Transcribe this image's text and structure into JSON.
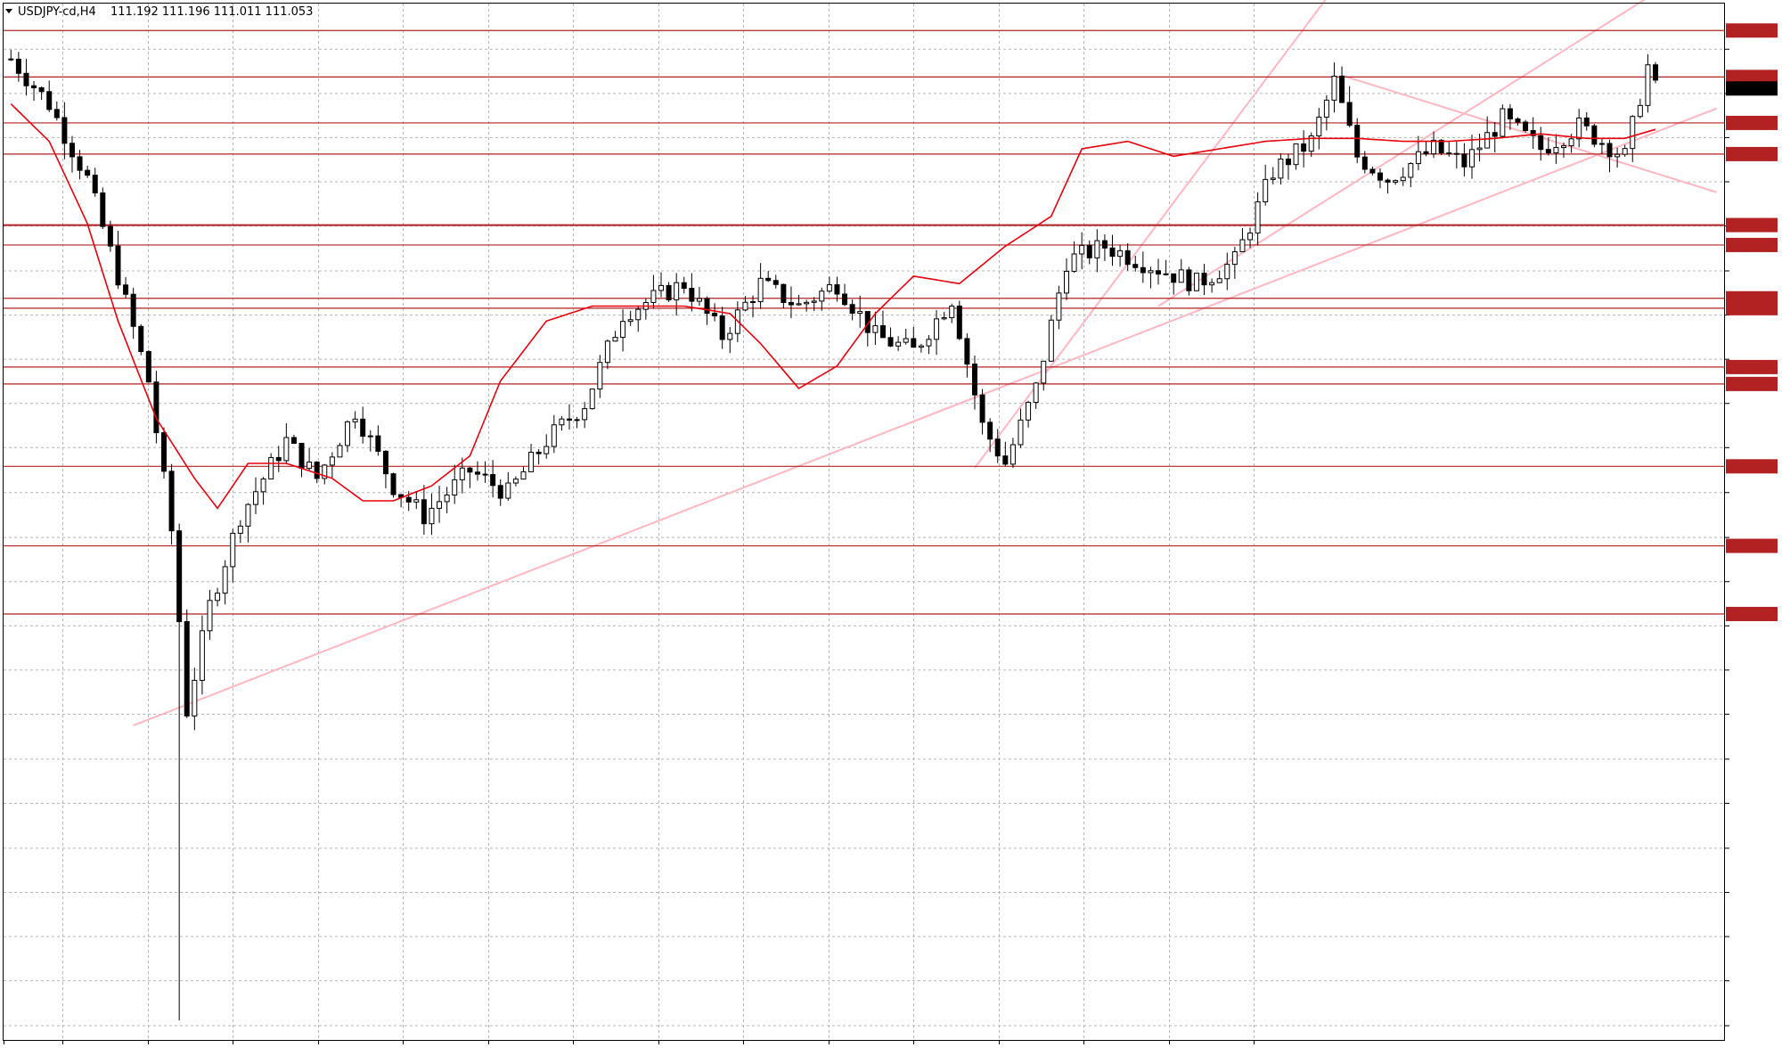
{
  "header": {
    "symbol": "USDJPY-cd,H4",
    "ohlc": "111.192 111.196 111.011 111.053"
  },
  "colors": {
    "background": "#ffffff",
    "grid": "#b4b4b4",
    "candle": "#000000",
    "bull_body": "#ffffff",
    "bear_body": "#000000",
    "ma": "#e8000b",
    "level_line": "#b22222",
    "level_label_bg": "#b22222",
    "trendline": "#ffb6c1"
  },
  "chart_data": {
    "type": "candlestick",
    "title": "",
    "xlabel": "",
    "ylabel": "",
    "ylim": [
      104.7,
      111.62
    ],
    "grid": true,
    "y_ticks": [
      "111.315",
      "111.020",
      "110.725",
      "110.430",
      "110.135",
      "109.835",
      "109.540",
      "109.245",
      "108.950",
      "108.655",
      "108.355",
      "108.055",
      "107.760",
      "107.465",
      "107.170",
      "106.875",
      "106.575",
      "106.280",
      "105.980",
      "105.685",
      "105.390",
      "105.095",
      "104.795"
    ],
    "x_ticks": [
      "27 Dec 2018",
      "2 Jan 00:00",
      "4 Jan 16:00",
      "9 Jan 08:00",
      "14 Jan 00:00",
      "16 Jan 16:00",
      "21 Jan 08:00",
      "24 Jan 00:00",
      "28 Jan 16:00",
      "31 Jan 08:00",
      "5 Feb 00:00",
      "7 Feb 16:00",
      "12 Feb 08:00",
      "15 Feb 00:00",
      "19 Feb 16:00",
      "22 Feb 08:00"
    ],
    "current_price": "111.053",
    "levels": [
      "111.440",
      "111.130",
      "110.823",
      "110.615",
      "110.141",
      "110.008",
      "109.652",
      "109.586",
      "109.193",
      "109.080",
      "108.530",
      "107.999",
      "107.544"
    ],
    "price_path": [
      [
        0,
        111.25
      ],
      [
        5,
        110.95
      ],
      [
        10,
        110.45
      ],
      [
        14,
        109.8
      ],
      [
        18,
        109.1
      ],
      [
        21,
        108.1
      ],
      [
        23,
        106.9
      ],
      [
        26,
        107.6
      ],
      [
        30,
        108.2
      ],
      [
        36,
        108.7
      ],
      [
        40,
        108.45
      ],
      [
        45,
        108.9
      ],
      [
        50,
        108.4
      ],
      [
        54,
        108.2
      ],
      [
        60,
        108.5
      ],
      [
        65,
        108.35
      ],
      [
        70,
        108.7
      ],
      [
        75,
        108.95
      ],
      [
        80,
        109.55
      ],
      [
        88,
        109.75
      ],
      [
        93,
        109.4
      ],
      [
        98,
        109.75
      ],
      [
        103,
        109.6
      ],
      [
        108,
        109.75
      ],
      [
        113,
        109.4
      ],
      [
        118,
        109.3
      ],
      [
        123,
        109.65
      ],
      [
        127,
        108.8
      ],
      [
        130,
        108.55
      ],
      [
        134,
        109.05
      ],
      [
        138,
        109.9
      ],
      [
        143,
        110.0
      ],
      [
        150,
        109.85
      ],
      [
        155,
        109.75
      ],
      [
        160,
        109.9
      ],
      [
        165,
        110.5
      ],
      [
        170,
        110.7
      ],
      [
        173,
        111.1
      ],
      [
        176,
        110.6
      ],
      [
        180,
        110.45
      ],
      [
        186,
        110.65
      ],
      [
        190,
        110.55
      ],
      [
        195,
        110.85
      ],
      [
        200,
        110.65
      ],
      [
        205,
        110.8
      ],
      [
        211,
        110.6
      ],
      [
        214,
        111.2
      ],
      [
        215,
        111.05
      ]
    ],
    "ma_path": [
      [
        0,
        110.95
      ],
      [
        5,
        110.7
      ],
      [
        10,
        110.15
      ],
      [
        14,
        109.5
      ],
      [
        19,
        108.85
      ],
      [
        24,
        108.45
      ],
      [
        27,
        108.25
      ],
      [
        31,
        108.55
      ],
      [
        36,
        108.55
      ],
      [
        42,
        108.45
      ],
      [
        46,
        108.3
      ],
      [
        50,
        108.3
      ],
      [
        55,
        108.4
      ],
      [
        60,
        108.6
      ],
      [
        64,
        109.1
      ],
      [
        70,
        109.5
      ],
      [
        76,
        109.6
      ],
      [
        82,
        109.6
      ],
      [
        88,
        109.6
      ],
      [
        94,
        109.55
      ],
      [
        98,
        109.35
      ],
      [
        103,
        109.05
      ],
      [
        108,
        109.2
      ],
      [
        113,
        109.55
      ],
      [
        118,
        109.8
      ],
      [
        124,
        109.75
      ],
      [
        130,
        110.0
      ],
      [
        136,
        110.2
      ],
      [
        140,
        110.65
      ],
      [
        146,
        110.7
      ],
      [
        152,
        110.6
      ],
      [
        158,
        110.65
      ],
      [
        164,
        110.7
      ],
      [
        170,
        110.72
      ],
      [
        176,
        110.72
      ],
      [
        182,
        110.7
      ],
      [
        188,
        110.7
      ],
      [
        194,
        110.72
      ],
      [
        200,
        110.75
      ],
      [
        206,
        110.72
      ],
      [
        211,
        110.72
      ],
      [
        215,
        110.78
      ]
    ],
    "trendlines": [
      {
        "from": [
          16,
          106.8
        ],
        "to": [
          223,
          110.92
        ]
      },
      {
        "from": [
          126,
          108.52
        ],
        "to": [
          175,
          111.86
        ]
      },
      {
        "from": [
          150,
          109.6
        ],
        "to": [
          223,
          111.95
        ]
      },
      {
        "from": [
          174,
          111.14
        ],
        "to": [
          223,
          110.36
        ]
      }
    ]
  }
}
